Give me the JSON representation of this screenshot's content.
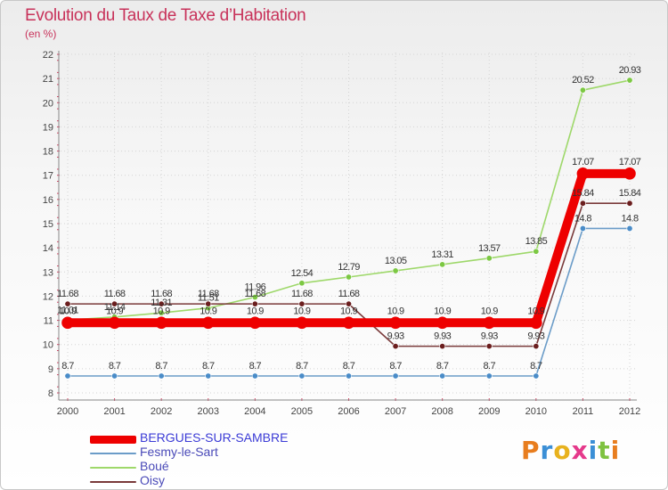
{
  "title": "Evolution du Taux de Taxe d’Habitation",
  "subtitle": "(en %)",
  "logo": {
    "letters": [
      "P",
      "r",
      "o",
      "x",
      "i",
      "t",
      "i"
    ],
    "colors": [
      "#e87d1e",
      "#3b8fd6",
      "#e8b21e",
      "#e5398b",
      "#3b8fd6",
      "#7fc241",
      "#e87d1e"
    ]
  },
  "chart_data": {
    "type": "line",
    "title": "Evolution du Taux de Taxe d’Habitation",
    "ylabel": "(en %)",
    "ylim": [
      8,
      22
    ],
    "yticks": [
      "8",
      "9",
      "10",
      "11",
      "12",
      "13",
      "14",
      "15",
      "16",
      "17",
      "18",
      "19",
      "20",
      "21",
      "22"
    ],
    "x": [
      "2000",
      "2001",
      "2002",
      "2003",
      "2004",
      "2005",
      "2006",
      "2007",
      "2008",
      "2009",
      "2010",
      "2011",
      "2012"
    ],
    "series": [
      {
        "name": "Fesmy-le-Sart",
        "color": "#6b9cc8",
        "marker": "#4a8cc8",
        "values": [
          8.7,
          8.7,
          8.7,
          8.7,
          8.7,
          8.7,
          8.7,
          8.7,
          8.7,
          8.7,
          8.7,
          14.8,
          14.8
        ],
        "labels": [
          "8.7",
          "8.7",
          "8.7",
          "8.7",
          "8.7",
          "8.7",
          "8.7",
          "8.7",
          "8.7",
          "8.7",
          "8.7",
          "14.8",
          "14.8"
        ]
      },
      {
        "name": "Boué",
        "color": "#9ed86a",
        "marker": "#7cc843",
        "values": [
          11.01,
          11.14,
          11.31,
          11.51,
          11.96,
          12.54,
          12.79,
          13.05,
          13.31,
          13.57,
          13.85,
          20.52,
          20.93
        ],
        "labels": [
          "11.01",
          "11.14",
          "11.31",
          "11.51",
          "11.96",
          "12.54",
          "12.79",
          "13.05",
          "13.31",
          "13.57",
          "13.85",
          "20.52",
          "20.93"
        ]
      },
      {
        "name": "Oisy",
        "color": "#7a3a3a",
        "marker": "#6b1e1e",
        "values": [
          11.68,
          11.68,
          11.68,
          11.68,
          11.68,
          11.68,
          11.68,
          9.93,
          9.93,
          9.93,
          9.93,
          15.84,
          15.84
        ],
        "labels": [
          "11.68",
          "11.68",
          "11.68",
          "11.68",
          "11.68",
          "11.68",
          "11.68",
          "9.93",
          "9.93",
          "9.93",
          "9.93",
          "15.84",
          "15.84"
        ]
      },
      {
        "name": "BERGUES-SUR-SAMBRE",
        "color": "#ee0000",
        "marker": "#ee0000",
        "values": [
          10.9,
          10.9,
          10.9,
          10.9,
          10.9,
          10.9,
          10.9,
          10.9,
          10.9,
          10.9,
          10.9,
          17.07,
          17.07
        ],
        "labels": [
          "10.9",
          "10.9",
          "10.9",
          "10.9",
          "10.9",
          "10.9",
          "10.9",
          "10.9",
          "10.9",
          "10.9",
          "10.9",
          "17.07",
          "17.07"
        ]
      }
    ],
    "legend_order": [
      "BERGUES-SUR-SAMBRE",
      "Fesmy-le-Sart",
      "Boué",
      "Oisy"
    ],
    "legend_position": "bottom-left",
    "grid": true
  }
}
